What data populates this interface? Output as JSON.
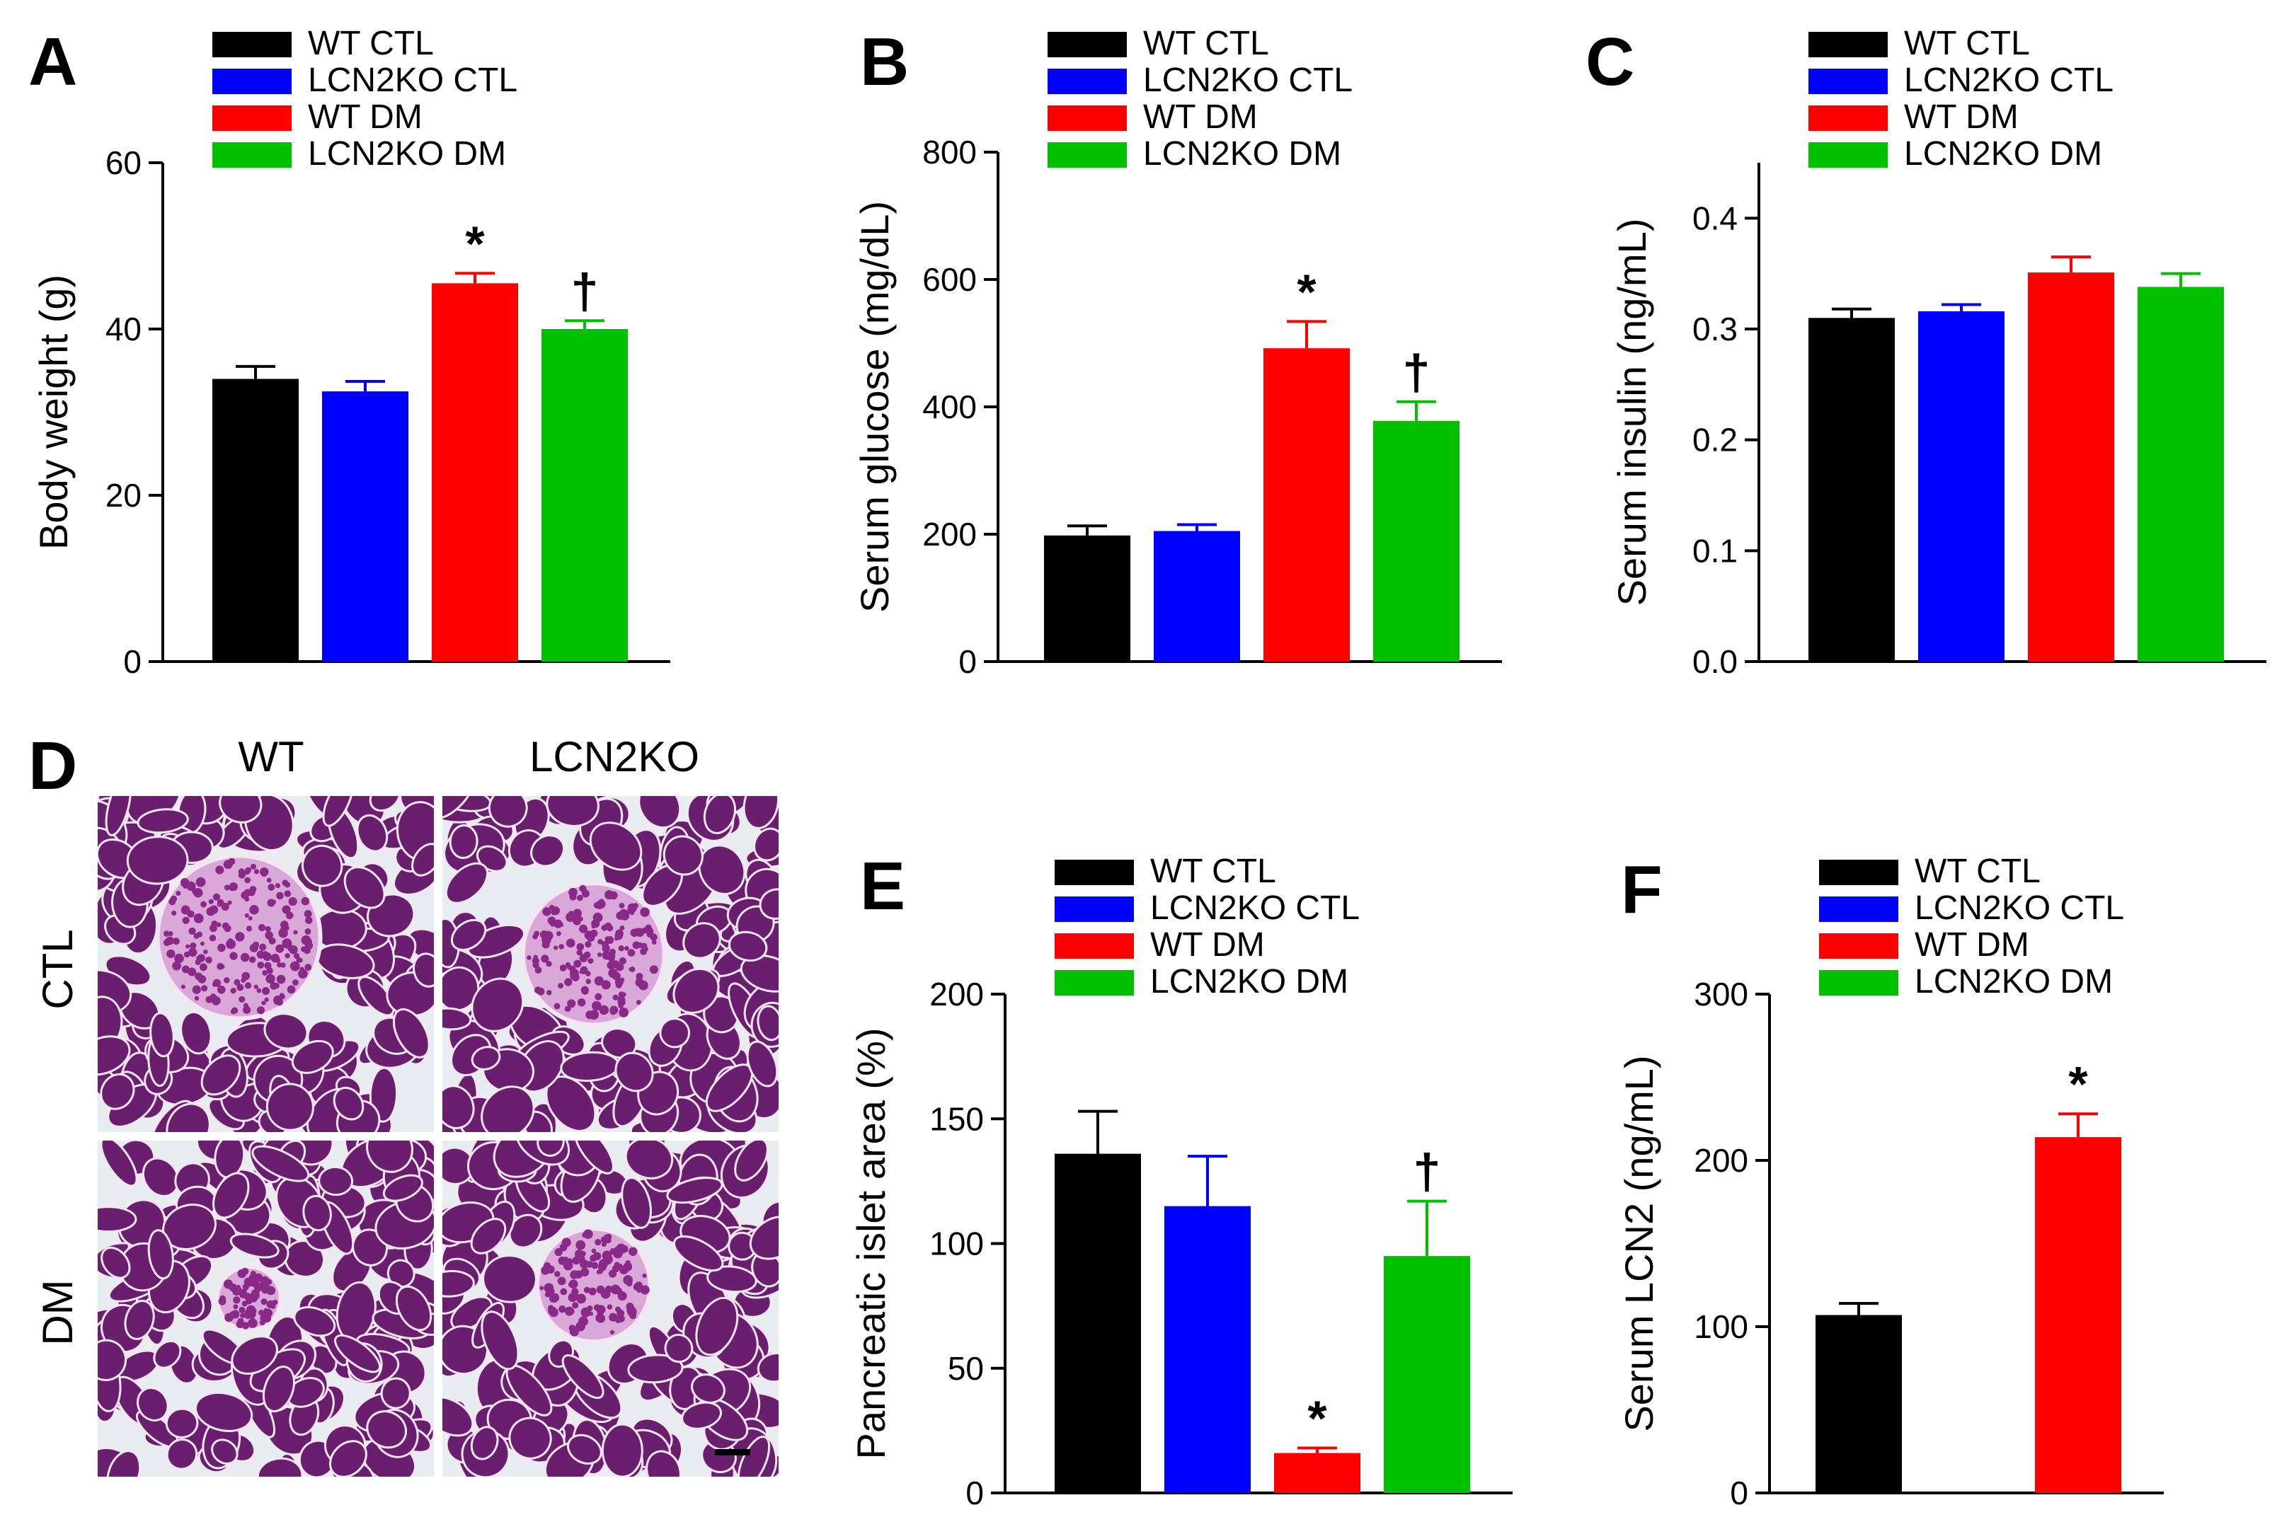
{
  "figure": {
    "panels": {
      "A": "A",
      "B": "B",
      "C": "C",
      "D": "D",
      "E": "E",
      "F": "F"
    },
    "micrograph": {
      "column_labels": [
        "WT",
        "LCN2KO"
      ],
      "row_labels": [
        "CTL",
        "DM"
      ],
      "tissue_color": "#6a1f6e",
      "stroma_color": "#d9a8d8",
      "background_color": "#e8eef0",
      "islet_color": "#d088c8"
    }
  },
  "chart_data": [
    {
      "id": "A",
      "type": "bar",
      "title": "",
      "categories": [
        "WT CTL",
        "LCN2KO CTL",
        "WT DM",
        "LCN2KO DM"
      ],
      "colors": [
        "#000000",
        "#0000ff",
        "#ff0000",
        "#00c000"
      ],
      "values": [
        34,
        32.5,
        45.5,
        40
      ],
      "errors": [
        1.5,
        1.2,
        1.2,
        1.0
      ],
      "marks": [
        "",
        "",
        "*",
        "†"
      ],
      "ylabel": "Body weight (g)",
      "ylim": [
        0,
        60
      ],
      "yticks": [
        "0",
        "20",
        "40",
        "60"
      ],
      "ytick_values": [
        0,
        20,
        40,
        60
      ],
      "legend": [
        "WT CTL",
        "LCN2KO CTL",
        "WT DM",
        "LCN2KO DM"
      ]
    },
    {
      "id": "B",
      "type": "bar",
      "title": "",
      "categories": [
        "WT CTL",
        "LCN2KO CTL",
        "WT DM",
        "LCN2KO DM"
      ],
      "colors": [
        "#000000",
        "#0000ff",
        "#ff0000",
        "#00c000"
      ],
      "values": [
        198,
        205,
        492,
        378
      ],
      "errors": [
        15,
        10,
        42,
        30
      ],
      "marks": [
        "",
        "",
        "*",
        "†"
      ],
      "ylabel": "Serum glucose (mg/dL)",
      "ylim": [
        0,
        800
      ],
      "yticks": [
        "0",
        "200",
        "400",
        "600",
        "800"
      ],
      "ytick_values": [
        0,
        200,
        400,
        600,
        800
      ],
      "legend": [
        "WT CTL",
        "LCN2KO CTL",
        "WT DM",
        "LCN2KO DM"
      ]
    },
    {
      "id": "C",
      "type": "bar",
      "title": "",
      "categories": [
        "WT CTL",
        "LCN2KO CTL",
        "WT DM",
        "LCN2KO DM"
      ],
      "colors": [
        "#000000",
        "#0000ff",
        "#ff0000",
        "#00c000"
      ],
      "values": [
        0.31,
        0.316,
        0.351,
        0.338
      ],
      "errors": [
        0.008,
        0.006,
        0.014,
        0.012
      ],
      "marks": [
        "",
        "",
        "",
        ""
      ],
      "ylabel": "Serum insulin (ng/mL)",
      "ylim": [
        0,
        0.45
      ],
      "yticks": [
        "0.0",
        "0.1",
        "0.2",
        "0.3",
        "0.4"
      ],
      "ytick_values": [
        0,
        0.1,
        0.2,
        0.3,
        0.4
      ],
      "legend": [
        "WT CTL",
        "LCN2KO CTL",
        "WT DM",
        "LCN2KO DM"
      ]
    },
    {
      "id": "E",
      "type": "bar",
      "title": "",
      "categories": [
        "WT CTL",
        "LCN2KO CTL",
        "WT DM",
        "LCN2KO DM"
      ],
      "colors": [
        "#000000",
        "#0000ff",
        "#ff0000",
        "#00c000"
      ],
      "values": [
        136,
        115,
        16,
        95
      ],
      "errors": [
        17,
        20,
        2,
        22
      ],
      "marks": [
        "",
        "",
        "*",
        "†"
      ],
      "ylabel": "Pancreatic islet area (%)",
      "ylim": [
        0,
        200
      ],
      "yticks": [
        "0",
        "50",
        "100",
        "150",
        "200"
      ],
      "ytick_values": [
        0,
        50,
        100,
        150,
        200
      ],
      "legend": [
        "WT CTL",
        "LCN2KO CTL",
        "WT DM",
        "LCN2KO DM"
      ]
    },
    {
      "id": "F",
      "type": "bar",
      "title": "",
      "categories": [
        "WT CTL",
        "WT DM"
      ],
      "colors": [
        "#000000",
        "#ff0000"
      ],
      "values": [
        107,
        214
      ],
      "errors": [
        7,
        14
      ],
      "marks": [
        "",
        "*"
      ],
      "ylabel": "Serum  LCN2 (ng/mL)",
      "ylim": [
        0,
        300
      ],
      "yticks": [
        "0",
        "100",
        "200",
        "300"
      ],
      "ytick_values": [
        0,
        100,
        200,
        300
      ],
      "legend": [
        "WT CTL",
        "LCN2KO CTL",
        "WT DM",
        "LCN2KO DM"
      ],
      "legend_colors": [
        "#000000",
        "#0000ff",
        "#ff0000",
        "#00c000"
      ]
    }
  ]
}
